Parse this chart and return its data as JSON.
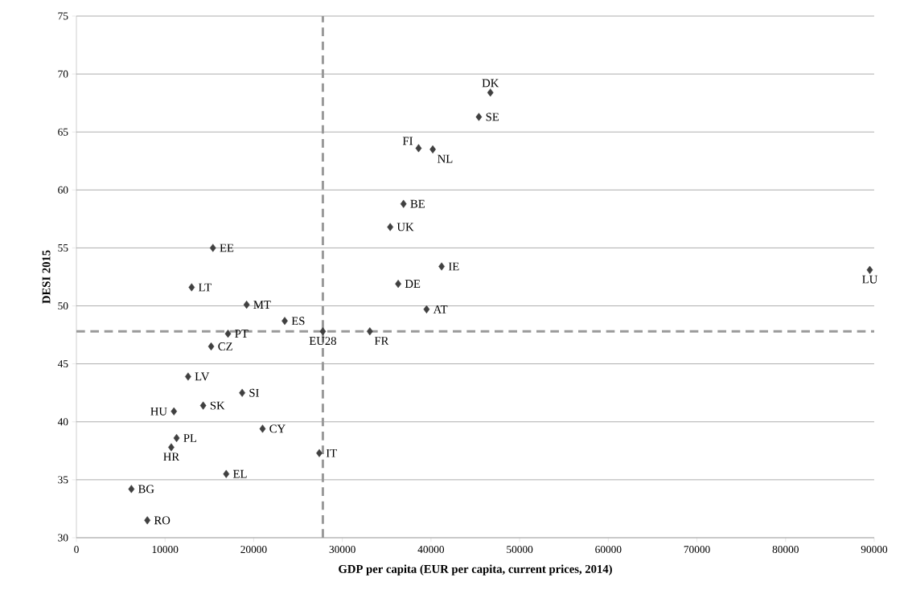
{
  "chart_data": {
    "type": "scatter",
    "xlabel": "GDP per capita (EUR per capita, current prices, 2014)",
    "ylabel": "DESI 2015",
    "xlim": [
      0,
      90000
    ],
    "ylim": [
      30,
      75
    ],
    "xticks": [
      0,
      10000,
      20000,
      30000,
      40000,
      50000,
      60000,
      70000,
      80000,
      90000
    ],
    "yticks": [
      30,
      35,
      40,
      45,
      50,
      55,
      60,
      65,
      70,
      75
    ],
    "grid": "y",
    "marker": "diamond",
    "series": [
      {
        "color": "#404040",
        "x": [
          46700,
          45400,
          38600,
          40200,
          36900,
          35400,
          41200,
          36300,
          39500,
          33100,
          27800,
          23500,
          19200,
          15400,
          13000,
          17100,
          15200,
          12600,
          18700,
          14300,
          11000,
          21000,
          11300,
          10700,
          27400,
          16900,
          6200,
          8000,
          89500
        ],
        "values": [
          68.4,
          66.3,
          63.6,
          63.5,
          58.8,
          56.8,
          53.4,
          51.9,
          49.7,
          47.8,
          47.8,
          48.7,
          50.1,
          55.0,
          51.6,
          47.6,
          46.5,
          43.9,
          42.5,
          41.4,
          40.9,
          39.4,
          38.6,
          37.8,
          37.3,
          35.5,
          34.2,
          31.5,
          53.1
        ]
      }
    ],
    "ref_lines": [
      {
        "axis": "x",
        "value": 27800,
        "color": "#999999",
        "line_style": "dashed"
      },
      {
        "axis": "y",
        "value": 47.8,
        "color": "#999999",
        "line_style": "dashed"
      }
    ],
    "annotations": [
      {
        "text": "DK",
        "x": 46700,
        "y": 68.4
      },
      {
        "text": "SE",
        "x": 45400,
        "y": 66.3
      },
      {
        "text": "FI",
        "x": 38600,
        "y": 63.6
      },
      {
        "text": "NL",
        "x": 40200,
        "y": 63.5
      },
      {
        "text": "BE",
        "x": 36900,
        "y": 58.8
      },
      {
        "text": "UK",
        "x": 35400,
        "y": 56.8
      },
      {
        "text": "IE",
        "x": 41200,
        "y": 53.4
      },
      {
        "text": "DE",
        "x": 36300,
        "y": 51.9
      },
      {
        "text": "AT",
        "x": 39500,
        "y": 49.7
      },
      {
        "text": "FR",
        "x": 33100,
        "y": 47.8
      },
      {
        "text": "EU28",
        "x": 27800,
        "y": 47.8
      },
      {
        "text": "ES",
        "x": 23500,
        "y": 48.7
      },
      {
        "text": "MT",
        "x": 19200,
        "y": 50.1
      },
      {
        "text": "EE",
        "x": 15400,
        "y": 55.0
      },
      {
        "text": "LT",
        "x": 13000,
        "y": 51.6
      },
      {
        "text": "PT",
        "x": 17100,
        "y": 47.6
      },
      {
        "text": "CZ",
        "x": 15200,
        "y": 46.5
      },
      {
        "text": "LV",
        "x": 12600,
        "y": 43.9
      },
      {
        "text": "SI",
        "x": 18700,
        "y": 42.5
      },
      {
        "text": "SK",
        "x": 14300,
        "y": 41.4
      },
      {
        "text": "HU",
        "x": 11000,
        "y": 40.9
      },
      {
        "text": "CY",
        "x": 21000,
        "y": 39.4
      },
      {
        "text": "PL",
        "x": 11300,
        "y": 38.6
      },
      {
        "text": "HR",
        "x": 10700,
        "y": 37.8
      },
      {
        "text": "IT",
        "x": 27400,
        "y": 37.3
      },
      {
        "text": "EL",
        "x": 16900,
        "y": 35.5
      },
      {
        "text": "BG",
        "x": 6200,
        "y": 34.2
      },
      {
        "text": "RO",
        "x": 8000,
        "y": 31.5
      },
      {
        "text": "LU",
        "x": 89500,
        "y": 53.1
      }
    ]
  }
}
